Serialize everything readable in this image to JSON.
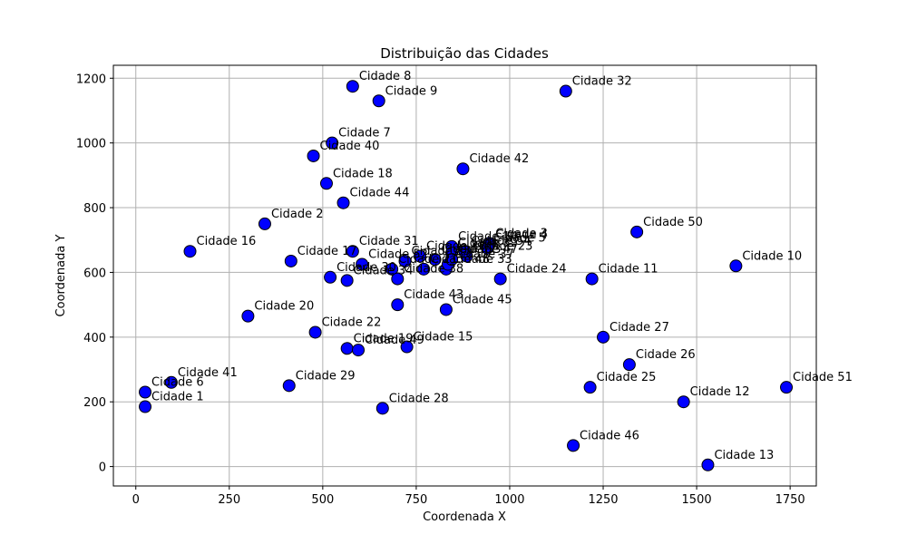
{
  "chart_data": {
    "type": "scatter",
    "title": "Distribuição das Cidades",
    "xlabel": "Coordenada X",
    "ylabel": "Coordenada Y",
    "xlim": [
      -60,
      1820
    ],
    "ylim": [
      -60,
      1240
    ],
    "xticks": [
      0,
      250,
      500,
      750,
      1000,
      1250,
      1500,
      1750
    ],
    "yticks": [
      0,
      200,
      400,
      600,
      800,
      1000,
      1200
    ],
    "grid": true,
    "marker_color": "#0000ff",
    "marker_edge": "#000000",
    "points": [
      {
        "label": "Cidade 1",
        "x": 25,
        "y": 185
      },
      {
        "label": "Cidade 2",
        "x": 345,
        "y": 750
      },
      {
        "label": "Cidade 3",
        "x": 945,
        "y": 690
      },
      {
        "label": "Cidade 4",
        "x": 945,
        "y": 685
      },
      {
        "label": "Cidade 5",
        "x": 940,
        "y": 675
      },
      {
        "label": "Cidade 6",
        "x": 25,
        "y": 230
      },
      {
        "label": "Cidade 7",
        "x": 525,
        "y": 1000
      },
      {
        "label": "Cidade 8",
        "x": 580,
        "y": 1175
      },
      {
        "label": "Cidade 9",
        "x": 650,
        "y": 1130
      },
      {
        "label": "Cidade 10",
        "x": 1605,
        "y": 620
      },
      {
        "label": "Cidade 11",
        "x": 1220,
        "y": 580
      },
      {
        "label": "Cidade 12",
        "x": 1465,
        "y": 200
      },
      {
        "label": "Cidade 13",
        "x": 1530,
        "y": 5
      },
      {
        "label": "Cidade 14",
        "x": 845,
        "y": 680
      },
      {
        "label": "Cidade 15",
        "x": 725,
        "y": 370
      },
      {
        "label": "Cidade 16",
        "x": 145,
        "y": 665
      },
      {
        "label": "Cidade 17",
        "x": 415,
        "y": 635
      },
      {
        "label": "Cidade 18",
        "x": 510,
        "y": 875
      },
      {
        "label": "Cidade 19",
        "x": 565,
        "y": 365
      },
      {
        "label": "Cidade 20",
        "x": 300,
        "y": 465
      },
      {
        "label": "Cidade 21",
        "x": 685,
        "y": 610
      },
      {
        "label": "Cidade 22",
        "x": 480,
        "y": 415
      },
      {
        "label": "Cidade 23",
        "x": 885,
        "y": 650
      },
      {
        "label": "Cidade 24",
        "x": 975,
        "y": 580
      },
      {
        "label": "Cidade 25",
        "x": 1215,
        "y": 245
      },
      {
        "label": "Cidade 26",
        "x": 1320,
        "y": 315
      },
      {
        "label": "Cidade 27",
        "x": 1250,
        "y": 400
      },
      {
        "label": "Cidade 28",
        "x": 660,
        "y": 180
      },
      {
        "label": "Cidade 29",
        "x": 410,
        "y": 250
      },
      {
        "label": "Cidade 30",
        "x": 520,
        "y": 585
      },
      {
        "label": "Cidade 31",
        "x": 580,
        "y": 665
      },
      {
        "label": "Cidade 32",
        "x": 1150,
        "y": 1160
      },
      {
        "label": "Cidade 33",
        "x": 830,
        "y": 610
      },
      {
        "label": "Cidade 34",
        "x": 565,
        "y": 575
      },
      {
        "label": "Cidade 35",
        "x": 720,
        "y": 635
      },
      {
        "label": "Cidade 36",
        "x": 760,
        "y": 650
      },
      {
        "label": "Cidade 37",
        "x": 835,
        "y": 625
      },
      {
        "label": "Cidade 38",
        "x": 700,
        "y": 580
      },
      {
        "label": "Cidade 39",
        "x": 845,
        "y": 660
      },
      {
        "label": "Cidade 40",
        "x": 475,
        "y": 960
      },
      {
        "label": "Cidade 41",
        "x": 95,
        "y": 260
      },
      {
        "label": "Cidade 42",
        "x": 875,
        "y": 920
      },
      {
        "label": "Cidade 43",
        "x": 700,
        "y": 500
      },
      {
        "label": "Cidade 44",
        "x": 555,
        "y": 815
      },
      {
        "label": "Cidade 45",
        "x": 830,
        "y": 485
      },
      {
        "label": "Cidade 46",
        "x": 1170,
        "y": 65
      },
      {
        "label": "Cidade 47",
        "x": 845,
        "y": 640
      },
      {
        "label": "Cidade 48",
        "x": 770,
        "y": 610
      },
      {
        "label": "Cidade 49",
        "x": 595,
        "y": 360
      },
      {
        "label": "Cidade 50",
        "x": 1340,
        "y": 725
      },
      {
        "label": "Cidade 51",
        "x": 1740,
        "y": 245
      },
      {
        "label": "Cidade 52",
        "x": 605,
        "y": 625
      },
      {
        "label": "Cidade 53",
        "x": 800,
        "y": 640
      },
      {
        "label": "Cidade 54",
        "x": 880,
        "y": 665
      }
    ]
  }
}
